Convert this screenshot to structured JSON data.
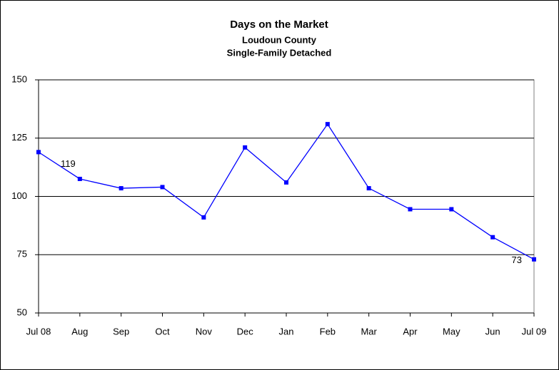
{
  "chart_data": {
    "type": "line",
    "title": "Days on the Market",
    "subtitle": [
      "Loudoun County",
      "Single-Family Detached"
    ],
    "categories": [
      "Jul 08",
      "Aug",
      "Sep",
      "Oct",
      "Nov",
      "Dec",
      "Jan",
      "Feb",
      "Mar",
      "Apr",
      "May",
      "Jun",
      "Jul 09"
    ],
    "values": [
      119,
      107.5,
      103.5,
      104,
      91,
      121,
      106,
      131,
      103.5,
      94.5,
      94.5,
      82.5,
      73
    ],
    "value_labels": [
      "119",
      null,
      null,
      null,
      null,
      null,
      null,
      null,
      null,
      null,
      null,
      null,
      "73"
    ],
    "color": "#0000ff",
    "ylim": [
      50,
      150
    ],
    "yticks": [
      50,
      75,
      100,
      125,
      150
    ],
    "grid": true
  }
}
